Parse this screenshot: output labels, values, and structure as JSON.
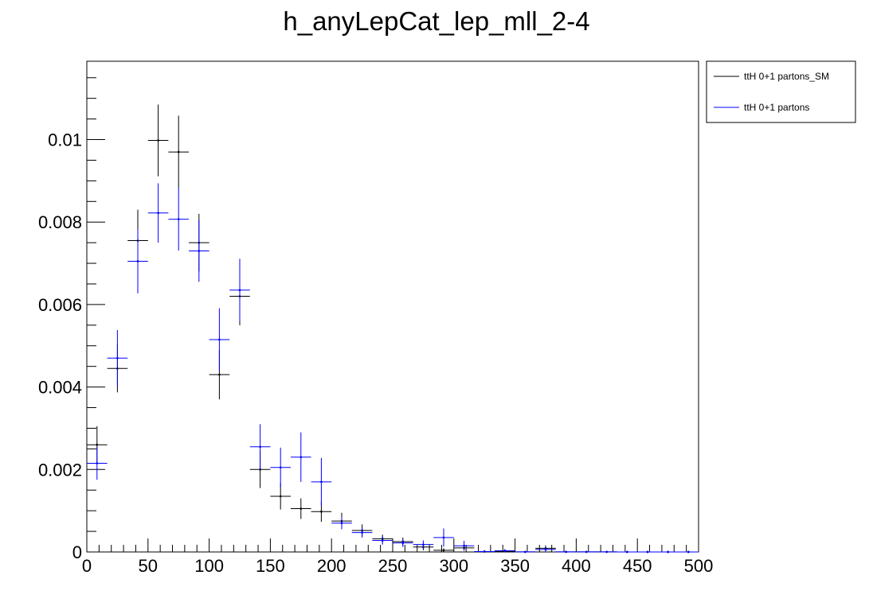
{
  "chart_data": {
    "type": "scatter",
    "title": "h_anyLepCat_lep_mll_2-4",
    "xlabel": "",
    "ylabel": "",
    "xlim": [
      0,
      500
    ],
    "ylim": [
      0,
      0.0119
    ],
    "bin_width": 16.67,
    "x_ticks": [
      0,
      50,
      100,
      150,
      200,
      250,
      300,
      350,
      400,
      450,
      500
    ],
    "x_tick_labels": [
      "0",
      "50",
      "100",
      "150",
      "200",
      "250",
      "300",
      "350",
      "400",
      "450",
      "500"
    ],
    "y_ticks": [
      0,
      0.002,
      0.004,
      0.006,
      0.008,
      0.01
    ],
    "y_tick_labels": [
      "0",
      "0.002",
      "0.004",
      "0.006",
      "0.008",
      "0.01"
    ],
    "grid": false,
    "legend_position": "outside-top-right",
    "series": [
      {
        "name": "ttH 0+1 partons_SM",
        "color": "#000000",
        "x": [
          8.33,
          25,
          41.67,
          58.33,
          75,
          91.67,
          108.33,
          125,
          141.67,
          158.33,
          175,
          191.67,
          208.33,
          225,
          241.67,
          258.33,
          275,
          291.67,
          308.33,
          325,
          341.67,
          358.33,
          375,
          391.67,
          408.33,
          425,
          441.67,
          458.33,
          475,
          491.67
        ],
        "y": [
          0.0026,
          0.00445,
          0.00755,
          0.00998,
          0.0097,
          0.0075,
          0.0043,
          0.0062,
          0.002,
          0.00135,
          0.00105,
          0.00098,
          0.00075,
          0.00052,
          0.00032,
          0.00025,
          0.00012,
          4e-05,
          0.0001,
          1e-05,
          2e-05,
          2e-06,
          9e-05,
          3e-06,
          2e-06,
          1.5e-06,
          1.2e-06,
          1e-06,
          1e-06,
          5e-07
        ],
        "err": [
          0.00045,
          0.00058,
          0.00075,
          0.00087,
          0.00088,
          0.0007,
          0.0006,
          0.0007,
          0.00045,
          0.00032,
          0.00025,
          0.00025,
          0.0002,
          0.00015,
          0.0001,
          0.0001,
          8e-05,
          5e-05,
          7e-05,
          3e-05,
          3e-05,
          2e-05,
          7e-05,
          2e-05,
          2e-05,
          1e-05,
          1e-05,
          1e-05,
          1e-05,
          1e-05
        ]
      },
      {
        "name": "ttH 0+1 partons",
        "color": "#0000ff",
        "x": [
          8.33,
          25,
          41.67,
          58.33,
          75,
          91.67,
          108.33,
          125,
          141.67,
          158.33,
          175,
          191.67,
          208.33,
          225,
          241.67,
          258.33,
          275,
          291.67,
          308.33,
          325,
          341.67,
          358.33,
          375,
          391.67,
          408.33,
          425,
          441.67,
          458.33,
          475,
          491.67
        ],
        "y": [
          0.00215,
          0.0047,
          0.00705,
          0.00822,
          0.00807,
          0.0073,
          0.00515,
          0.00635,
          0.00255,
          0.00205,
          0.0023,
          0.0017,
          0.0007,
          0.00047,
          0.00028,
          0.00022,
          0.00018,
          0.00035,
          0.00015,
          1e-05,
          3e-05,
          2e-06,
          6e-05,
          3e-06,
          2e-06,
          1.5e-06,
          1.2e-06,
          1e-06,
          1e-06,
          5e-07
        ],
        "err": [
          0.0004,
          0.00068,
          0.00078,
          0.00072,
          0.00076,
          0.00075,
          0.00076,
          0.00076,
          0.00055,
          0.00048,
          0.0006,
          0.00058,
          0.00015,
          0.00012,
          0.0001,
          0.0001,
          0.0001,
          0.00022,
          0.00012,
          3e-05,
          4e-05,
          2e-05,
          6e-05,
          2e-05,
          2e-05,
          1e-05,
          1e-05,
          1e-05,
          1e-05,
          1e-05
        ]
      }
    ]
  }
}
